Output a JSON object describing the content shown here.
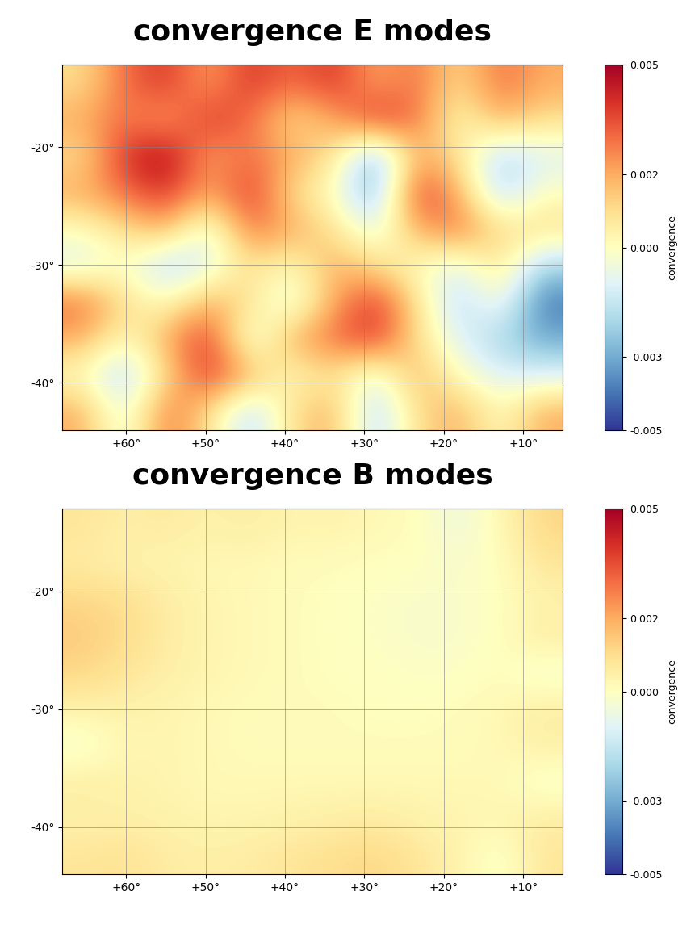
{
  "chart_data": [
    {
      "type": "heatmap",
      "title": "convergence E modes",
      "xlim": [
        68,
        5
      ],
      "ylim": [
        -44,
        -13
      ],
      "xticks": [
        {
          "value": 60,
          "label": "+60°"
        },
        {
          "value": 50,
          "label": "+50°"
        },
        {
          "value": 40,
          "label": "+40°"
        },
        {
          "value": 30,
          "label": "+30°"
        },
        {
          "value": 20,
          "label": "+20°"
        },
        {
          "value": 10,
          "label": "+10°"
        }
      ],
      "yticks": [
        {
          "value": -20,
          "label": "-20°"
        },
        {
          "value": -30,
          "label": "-30°"
        },
        {
          "value": -40,
          "label": "-40°"
        }
      ],
      "grid": true,
      "cells": [
        [
          0.001,
          0.003,
          0.004,
          0.002,
          0.004,
          0.003,
          0.004,
          0.002,
          0.003,
          0.001,
          0.003,
          0.002
        ],
        [
          0.002,
          0.003,
          0.002,
          0.004,
          0.003,
          0.001,
          0.002,
          0.004,
          0.003,
          0.0,
          0.002,
          0.001
        ],
        [
          0.001,
          0.004,
          0.005,
          0.002,
          0.003,
          0.002,
          0.001,
          -0.003,
          0.002,
          0.001,
          -0.002,
          -0.001
        ],
        [
          0.002,
          0.003,
          0.004,
          0.002,
          0.004,
          0.001,
          0.0,
          -0.003,
          0.004,
          0.002,
          -0.002,
          0.0
        ],
        [
          0.0,
          0.001,
          0.002,
          -0.001,
          0.003,
          0.002,
          0.001,
          -0.001,
          0.002,
          0.003,
          0.001,
          0.001
        ],
        [
          -0.001,
          0.0,
          -0.002,
          -0.001,
          0.001,
          0.0,
          0.002,
          0.001,
          0.0,
          -0.001,
          0.001,
          -0.002
        ],
        [
          0.003,
          0.001,
          0.0,
          0.002,
          0.001,
          -0.001,
          0.002,
          0.004,
          0.001,
          -0.002,
          0.0,
          -0.004
        ],
        [
          0.002,
          0.0,
          0.002,
          0.004,
          -0.001,
          0.002,
          0.003,
          0.004,
          0.001,
          -0.001,
          -0.002,
          -0.003
        ],
        [
          0.0,
          -0.002,
          0.001,
          0.004,
          0.002,
          0.0,
          0.001,
          -0.001,
          0.002,
          0.0,
          -0.001,
          -0.001
        ],
        [
          0.002,
          -0.001,
          0.003,
          0.001,
          -0.002,
          0.001,
          0.002,
          -0.002,
          0.001,
          0.002,
          0.0,
          0.002
        ]
      ],
      "colorbar_label": "convergence",
      "colorbar_range": [
        -0.005,
        0.005
      ],
      "colorbar_ticks": [
        0.005,
        0.002,
        {
          "value": 0.0,
          "label": "0.000"
        },
        -0.003,
        -0.005
      ]
    },
    {
      "type": "heatmap",
      "title": "convergence B modes",
      "xlim": [
        68,
        5
      ],
      "ylim": [
        -44,
        -13
      ],
      "xticks": [
        {
          "value": 60,
          "label": "+60°"
        },
        {
          "value": 50,
          "label": "+50°"
        },
        {
          "value": 40,
          "label": "+40°"
        },
        {
          "value": 30,
          "label": "+30°"
        },
        {
          "value": 20,
          "label": "+20°"
        },
        {
          "value": 10,
          "label": "+10°"
        }
      ],
      "yticks": [
        {
          "value": -20,
          "label": "-20°"
        },
        {
          "value": -30,
          "label": "-30°"
        },
        {
          "value": -40,
          "label": "-40°"
        }
      ],
      "grid": true,
      "cells": [
        [
          0.0008,
          0.0005,
          0.0007,
          0.0004,
          0.0006,
          0.0003,
          0.0004,
          0.0002,
          0.0001,
          -0.0006,
          0.0002,
          0.0012
        ],
        [
          0.0006,
          0.0004,
          0.0003,
          0.0002,
          0.0002,
          0.0001,
          0.0001,
          0.0,
          0.0,
          -0.0002,
          0.0,
          0.0008
        ],
        [
          0.0012,
          0.001,
          0.0006,
          0.0003,
          0.0002,
          0.0001,
          0.0,
          -0.0001,
          -0.0002,
          -0.0002,
          0.0,
          0.0004
        ],
        [
          0.0014,
          0.0011,
          0.0006,
          0.0003,
          0.0002,
          0.0001,
          0.0,
          -0.0001,
          -0.0002,
          -0.0002,
          0.0,
          0.0006
        ],
        [
          0.0012,
          0.0008,
          0.0005,
          0.0003,
          0.0002,
          0.0001,
          0.0,
          0.0,
          -0.0001,
          -0.0001,
          0.0001,
          -0.0004
        ],
        [
          0.0004,
          0.0004,
          0.0003,
          0.0002,
          0.0001,
          0.0001,
          0.0001,
          0.0,
          0.0,
          0.0001,
          0.0002,
          0.0006
        ],
        [
          -0.0004,
          0.0003,
          0.0003,
          0.0002,
          0.0001,
          0.0001,
          0.0001,
          0.0001,
          0.0001,
          0.0001,
          0.0002,
          0.0005
        ],
        [
          0.0006,
          0.0004,
          0.0003,
          0.0002,
          0.0002,
          0.0002,
          0.0002,
          0.0002,
          0.0002,
          0.0002,
          0.0002,
          -0.0003
        ],
        [
          0.0004,
          0.0005,
          0.0004,
          0.0003,
          0.0003,
          0.0004,
          0.0005,
          0.0006,
          0.0004,
          0.0003,
          0.0003,
          0.0006
        ],
        [
          0.0008,
          0.0009,
          0.0006,
          0.0005,
          0.0006,
          0.0008,
          0.001,
          0.0012,
          0.0008,
          0.0004,
          -0.0003,
          0.0008
        ]
      ],
      "colorbar_label": "convergence",
      "colorbar_range": [
        -0.005,
        0.005
      ],
      "colorbar_ticks": [
        0.005,
        0.002,
        {
          "value": 0.0,
          "label": "0.000"
        },
        -0.003,
        -0.005
      ]
    }
  ]
}
